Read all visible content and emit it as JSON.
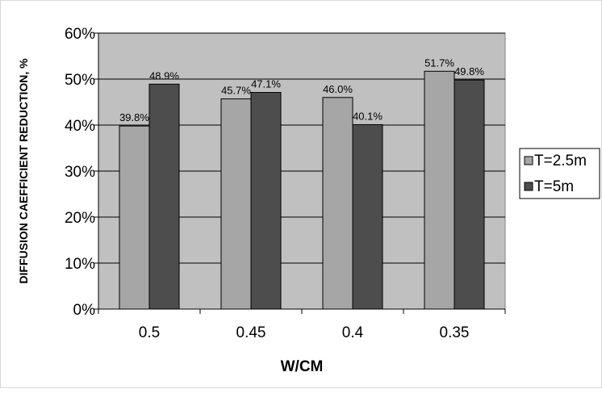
{
  "chart_data": {
    "type": "bar",
    "categories": [
      "0.5",
      "0.45",
      "0.4",
      "0.35"
    ],
    "series": [
      {
        "name": "T=2.5m",
        "values": [
          39.8,
          45.7,
          46.0,
          51.7
        ],
        "labels": [
          "39.8%",
          "45.7%",
          "46.0%",
          "51.7%"
        ],
        "color": "#a6a6a6"
      },
      {
        "name": "T=5m",
        "values": [
          48.9,
          47.1,
          40.1,
          49.8
        ],
        "labels": [
          "48.9%",
          "47.1%",
          "40.1%",
          "49.8%"
        ],
        "color": "#4d4d4d"
      }
    ],
    "title": "",
    "xlabel": "W/CM",
    "ylabel": "DIFFUSION CAEFFICIENT REDUCTION, %",
    "ylim": [
      0,
      60
    ],
    "yticks": [
      0,
      10,
      20,
      30,
      40,
      50,
      60
    ],
    "ytick_labels": [
      "0%",
      "10%",
      "20%",
      "30%",
      "40%",
      "50%",
      "60%"
    ],
    "grid": true,
    "plot_background": "#c0c0c0",
    "legend_position": "right"
  }
}
